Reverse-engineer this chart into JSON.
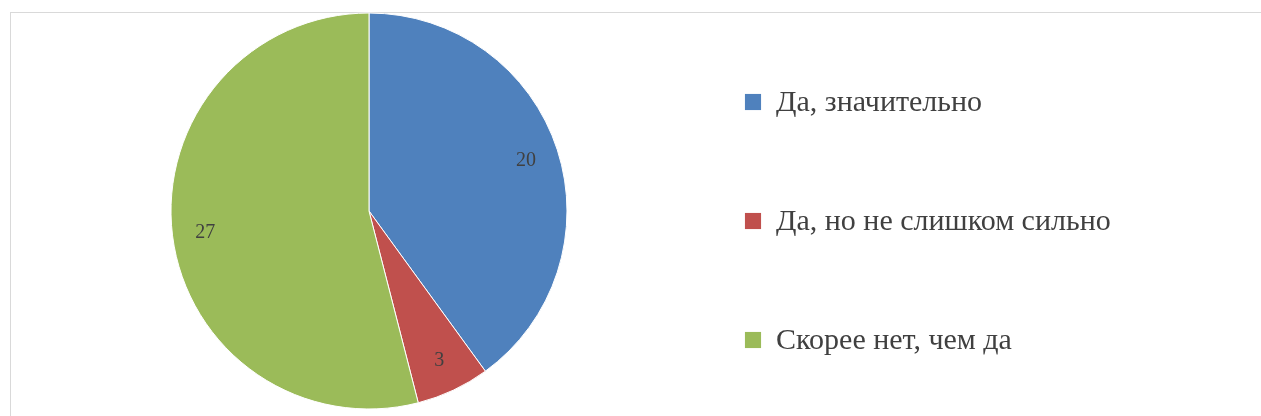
{
  "chart_data": {
    "type": "pie",
    "categories": [
      "Да, значительно",
      "Да, но не слишком сильно",
      "Скорее нет, чем да"
    ],
    "values": [
      20,
      3,
      27
    ],
    "colors": [
      "#4f81bd",
      "#c0504d",
      "#9bbb59"
    ],
    "data_labels": true,
    "legend": "right"
  }
}
